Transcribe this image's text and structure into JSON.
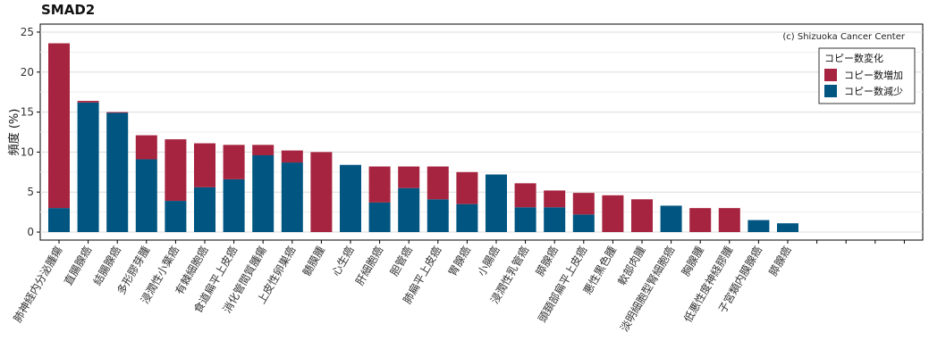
{
  "chart_data": {
    "type": "bar",
    "title": "SMAD2",
    "ylabel": "頻度 (%)",
    "xlabel": "",
    "ylim": [
      -1,
      26
    ],
    "yticks": [
      0,
      5,
      10,
      15,
      20,
      25
    ],
    "grid": true,
    "credit": "(c) Shizuoka Cancer Center",
    "legend": {
      "title": "コピー数変化",
      "position": "top-right",
      "entries": [
        {
          "name": "コピー数増加",
          "color": "#a6243f"
        },
        {
          "name": "コピー数減少",
          "color": "#005581"
        }
      ]
    },
    "categories": [
      "肺神経内分泌腫瘍",
      "直腸腺癌",
      "結腸腺癌",
      "多形膠芽腫",
      "浸潤性小葉癌",
      "有棘細胞癌",
      "食道扁平上皮癌",
      "消化管間質腫瘍",
      "上皮性卵巣癌",
      "髄膜腫",
      "心生癌",
      "肝細胞癌",
      "胆管癌",
      "肺扁平上皮癌",
      "胃腺癌",
      "小腸癌",
      "浸潤性乳管癌",
      "膵腺癌",
      "頭頚部扁平上皮癌",
      "悪性黒色腫",
      "軟部肉腫",
      "淡明細胞型腎細胞癌",
      "胸腺腫",
      "低悪性度神経膠腫",
      "子宮類内膜腺癌",
      "膵腺癌",
      "",
      "",
      "",
      ""
    ],
    "series": [
      {
        "name": "コピー数減少",
        "color": "#005581",
        "values": [
          3.0,
          16.2,
          14.9,
          9.1,
          3.9,
          5.6,
          6.6,
          9.6,
          8.7,
          0,
          8.4,
          3.7,
          5.5,
          4.1,
          3.5,
          7.2,
          3.1,
          3.1,
          2.2,
          0,
          0,
          3.3,
          0,
          0,
          1.5,
          1.1,
          0,
          0,
          0,
          0
        ]
      },
      {
        "name": "コピー数増加",
        "color": "#a6243f",
        "values": [
          20.6,
          0.2,
          0.1,
          3.0,
          7.7,
          5.5,
          4.3,
          1.3,
          1.5,
          10.0,
          0,
          4.5,
          2.7,
          4.1,
          4.0,
          0,
          3.0,
          2.1,
          2.7,
          4.6,
          4.1,
          0,
          3.0,
          3.0,
          0,
          0,
          0,
          0,
          0,
          0
        ]
      }
    ]
  }
}
